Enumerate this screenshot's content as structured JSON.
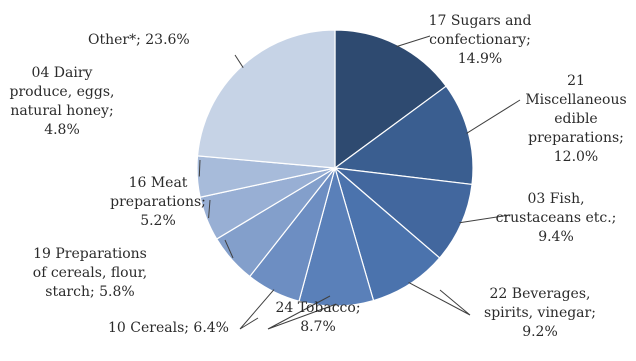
{
  "chart_data": {
    "type": "pie",
    "title": "",
    "unit": "%",
    "start": "12 o'clock, clockwise",
    "slices": [
      {
        "label_lines": [
          "17 Sugars  and",
          "confectionary;",
          "14.9%"
        ],
        "value": 14.9,
        "color": "#2e4a70"
      },
      {
        "label_lines": [
          "21",
          "Miscellaneous",
          "edible",
          "preparations;",
          "12.0%"
        ],
        "value": 12.0,
        "color": "#3a5e90"
      },
      {
        "label_lines": [
          "03 Fish,",
          "crustaceans etc.;",
          "9.4%"
        ],
        "value": 9.4,
        "color": "#42679e"
      },
      {
        "label_lines": [
          "22 Beverages,",
          "spirits, vinegar;",
          "9.2%"
        ],
        "value": 9.2,
        "color": "#4b73ad"
      },
      {
        "label_lines": [
          "24 Tobacco;",
          "8.7%"
        ],
        "value": 8.7,
        "color": "#5a80b9"
      },
      {
        "label_lines": [
          "10 Cereals;  6.4%"
        ],
        "value": 6.4,
        "color": "#6d8ec2"
      },
      {
        "label_lines": [
          "19 Preparations",
          "of cereals, flour,",
          "starch; 5.8%"
        ],
        "value": 5.8,
        "color": "#839fcb"
      },
      {
        "label_lines": [
          "16 Meat",
          "preparations;",
          "5.2%"
        ],
        "value": 5.2,
        "color": "#98afd4"
      },
      {
        "label_lines": [
          "04 Dairy",
          "produce, eggs,",
          "natural honey;",
          "4.8%"
        ],
        "value": 4.8,
        "color": "#a7bbda"
      },
      {
        "label_lines": [
          "Other*; 23.6%"
        ],
        "value": 23.6,
        "color": "#c6d3e6"
      }
    ]
  }
}
